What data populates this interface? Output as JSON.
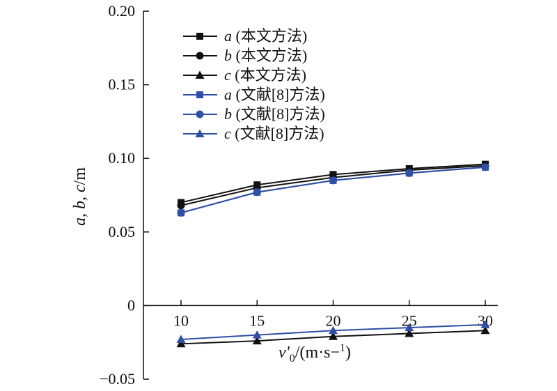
{
  "chart_data": {
    "type": "line",
    "title": "",
    "xlabel": "v'0/(m·s−1)",
    "ylabel": "a, b, c/m",
    "x": [
      10,
      15,
      20,
      25,
      30
    ],
    "x_ticks": [
      "10",
      "15",
      "20",
      "25",
      "30"
    ],
    "ylim": [
      -0.05,
      0.2
    ],
    "y_ticks": [
      {
        "value": 0.2,
        "label": "0.20"
      },
      {
        "value": 0.15,
        "label": "0.15"
      },
      {
        "value": 0.1,
        "label": "0.10"
      },
      {
        "value": 0.05,
        "label": "0.05"
      },
      {
        "value": 0,
        "label": "0"
      },
      {
        "value": -0.05,
        "label": "−0.05"
      }
    ],
    "grid": false,
    "legend_position": "top-left",
    "series": [
      {
        "name": "a (本文方法)",
        "var": "a",
        "method": "本文方法",
        "color": "#111111",
        "marker": "square",
        "values": [
          0.07,
          0.082,
          0.089,
          0.093,
          0.096
        ]
      },
      {
        "name": "b (本文方法)",
        "var": "b",
        "method": "本文方法",
        "color": "#111111",
        "marker": "circle",
        "values": [
          0.068,
          0.08,
          0.087,
          0.092,
          0.095
        ]
      },
      {
        "name": "c (本文方法)",
        "var": "c",
        "method": "本文方法",
        "color": "#111111",
        "marker": "triangle",
        "values": [
          -0.026,
          -0.024,
          -0.021,
          -0.019,
          -0.017
        ]
      },
      {
        "name": "a (文献[8]方法)",
        "var": "a",
        "method": "文献[8]方法",
        "color": "#2e4fa3",
        "marker": "square",
        "values": [
          0.063,
          0.077,
          0.085,
          0.09,
          0.094
        ]
      },
      {
        "name": "b (文献[8]方法)",
        "var": "b",
        "method": "文献[8]方法",
        "color": "#2e4fa3",
        "marker": "circle",
        "values": [
          0.063,
          0.077,
          0.085,
          0.09,
          0.094
        ]
      },
      {
        "name": "c (文献[8]方法)",
        "var": "c",
        "method": "文献[8]方法",
        "color": "#2e4fa3",
        "marker": "triangle",
        "values": [
          -0.023,
          -0.02,
          -0.017,
          -0.015,
          -0.013
        ]
      }
    ]
  }
}
